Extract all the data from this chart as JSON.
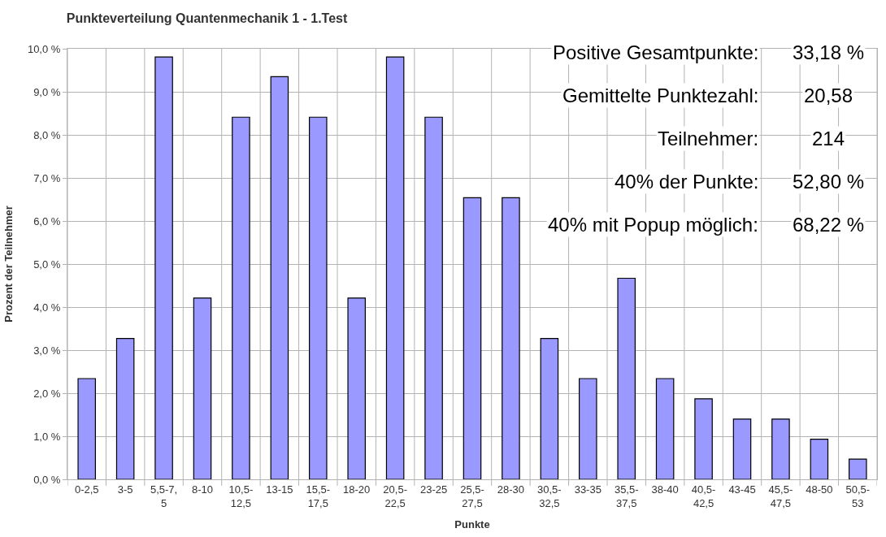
{
  "chart_data": {
    "type": "bar",
    "title": "Punkteverteilung Quantenmechanik 1 - 1.Test",
    "xlabel": "Punkte",
    "ylabel": "Prozent der Teilnehmer",
    "categories": [
      "0-2,5",
      "3-5",
      "5,5-7,5",
      "8-10",
      "10,5-12,5",
      "13-15",
      "15,5-17,5",
      "18-20",
      "20,5-22,5",
      "23-25",
      "25,5-27,5",
      "28-30",
      "30,5-32,5",
      "33-35",
      "35,5-37,5",
      "38-40",
      "40,5-42,5",
      "43-45",
      "45,5-47,5",
      "48-50",
      "50,5-53"
    ],
    "values": [
      2.34,
      3.27,
      9.81,
      4.21,
      8.41,
      9.35,
      8.41,
      4.21,
      9.81,
      8.41,
      6.54,
      6.54,
      3.27,
      2.34,
      4.67,
      2.34,
      1.87,
      1.4,
      1.4,
      0.93,
      0.47
    ],
    "color": "#9999ff",
    "ylim": [
      0,
      10
    ],
    "yticks": [
      {
        "value": 0,
        "label": "0,0 %"
      },
      {
        "value": 1,
        "label": "1,0 %"
      },
      {
        "value": 2,
        "label": "2,0 %"
      },
      {
        "value": 3,
        "label": "3,0 %"
      },
      {
        "value": 4,
        "label": "4,0 %"
      },
      {
        "value": 5,
        "label": "5,0 %"
      },
      {
        "value": 6,
        "label": "6,0 %"
      },
      {
        "value": 7,
        "label": "7,0 %"
      },
      {
        "value": 8,
        "label": "8,0 %"
      },
      {
        "value": 9,
        "label": "9,0 %"
      },
      {
        "value": 10,
        "label": "10,0 %"
      }
    ],
    "grid": true,
    "annotations": [
      "Positive Gesamtpunkte:",
      "33,18 %",
      "Gemittelte Punktezahl:",
      "20,58",
      "Teilnehmer:",
      "214",
      "40% der Punkte:",
      "52,80 %",
      "40% mit Popup möglich:",
      "68,22 %"
    ]
  }
}
